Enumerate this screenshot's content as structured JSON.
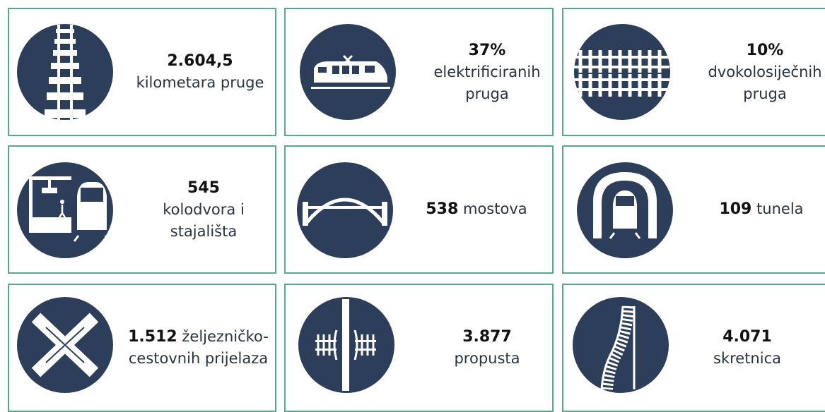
{
  "cards": [
    {
      "value": "2.604,5",
      "label": "kilometara pruge"
    },
    {
      "value": "37%",
      "label": "elektrificiranih pruga"
    },
    {
      "value": "10%",
      "label": "dvokolosiječnih pruga"
    },
    {
      "value": "545",
      "label": "kolodvora i stajališta"
    },
    {
      "value": "538",
      "label": "mostova"
    },
    {
      "value": "109",
      "label": "tunela"
    },
    {
      "value": "1.512",
      "label": "željezničko-cestovnih prijelaza"
    },
    {
      "value": "3.877",
      "label": "propusta"
    },
    {
      "value": "4.071",
      "label": "skretnica"
    }
  ]
}
